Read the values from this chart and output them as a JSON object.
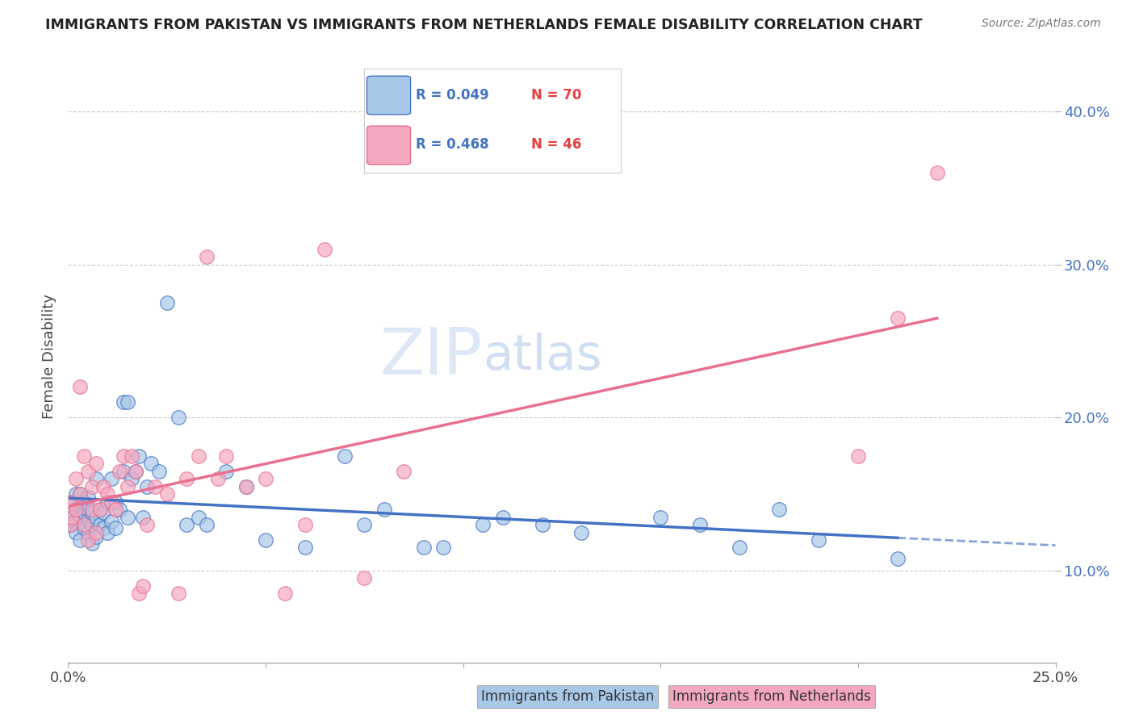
{
  "title": "IMMIGRANTS FROM PAKISTAN VS IMMIGRANTS FROM NETHERLANDS FEMALE DISABILITY CORRELATION CHART",
  "source": "Source: ZipAtlas.com",
  "ylabel": "Female Disability",
  "y_ticks": [
    0.1,
    0.2,
    0.3,
    0.4
  ],
  "y_tick_labels": [
    "10.0%",
    "20.0%",
    "30.0%",
    "40.0%"
  ],
  "x_lim": [
    0.0,
    0.25
  ],
  "y_lim": [
    0.04,
    0.44
  ],
  "pakistan_color": "#a8c8e8",
  "netherlands_color": "#f4a8c0",
  "pakistan_R": 0.049,
  "pakistan_N": 70,
  "netherlands_R": 0.468,
  "netherlands_N": 46,
  "legend_R_color": "#4472c4",
  "legend_N_color": "#e84040",
  "pakistan_line_color": "#4472c4",
  "netherlands_line_color": "#e87090",
  "background_color": "#ffffff",
  "grid_color": "#cccccc",
  "pakistan_scatter_x": [
    0.0005,
    0.001,
    0.001,
    0.0015,
    0.002,
    0.002,
    0.002,
    0.003,
    0.003,
    0.003,
    0.003,
    0.004,
    0.004,
    0.004,
    0.005,
    0.005,
    0.005,
    0.005,
    0.006,
    0.006,
    0.006,
    0.007,
    0.007,
    0.007,
    0.008,
    0.008,
    0.009,
    0.009,
    0.01,
    0.01,
    0.011,
    0.011,
    0.012,
    0.012,
    0.013,
    0.014,
    0.014,
    0.015,
    0.015,
    0.016,
    0.017,
    0.018,
    0.019,
    0.02,
    0.021,
    0.023,
    0.025,
    0.028,
    0.03,
    0.033,
    0.035,
    0.04,
    0.045,
    0.05,
    0.06,
    0.07,
    0.075,
    0.08,
    0.09,
    0.095,
    0.105,
    0.11,
    0.12,
    0.13,
    0.15,
    0.16,
    0.17,
    0.18,
    0.19,
    0.21
  ],
  "pakistan_scatter_y": [
    0.13,
    0.135,
    0.145,
    0.132,
    0.125,
    0.14,
    0.15,
    0.12,
    0.135,
    0.142,
    0.15,
    0.128,
    0.138,
    0.145,
    0.125,
    0.133,
    0.14,
    0.148,
    0.118,
    0.13,
    0.138,
    0.122,
    0.135,
    0.16,
    0.13,
    0.14,
    0.128,
    0.138,
    0.125,
    0.145,
    0.132,
    0.16,
    0.128,
    0.145,
    0.14,
    0.165,
    0.21,
    0.135,
    0.21,
    0.16,
    0.165,
    0.175,
    0.135,
    0.155,
    0.17,
    0.165,
    0.275,
    0.2,
    0.13,
    0.135,
    0.13,
    0.165,
    0.155,
    0.12,
    0.115,
    0.175,
    0.13,
    0.14,
    0.115,
    0.115,
    0.13,
    0.135,
    0.13,
    0.125,
    0.135,
    0.13,
    0.115,
    0.14,
    0.12,
    0.108
  ],
  "netherlands_scatter_x": [
    0.0005,
    0.001,
    0.001,
    0.002,
    0.002,
    0.003,
    0.003,
    0.004,
    0.004,
    0.005,
    0.005,
    0.006,
    0.006,
    0.007,
    0.007,
    0.008,
    0.009,
    0.01,
    0.011,
    0.012,
    0.013,
    0.014,
    0.015,
    0.016,
    0.017,
    0.018,
    0.019,
    0.02,
    0.022,
    0.025,
    0.028,
    0.03,
    0.033,
    0.035,
    0.038,
    0.04,
    0.045,
    0.05,
    0.055,
    0.06,
    0.065,
    0.075,
    0.085,
    0.2,
    0.21,
    0.22
  ],
  "netherlands_scatter_y": [
    0.13,
    0.145,
    0.135,
    0.14,
    0.16,
    0.15,
    0.22,
    0.13,
    0.175,
    0.12,
    0.165,
    0.14,
    0.155,
    0.125,
    0.17,
    0.14,
    0.155,
    0.15,
    0.145,
    0.14,
    0.165,
    0.175,
    0.155,
    0.175,
    0.165,
    0.085,
    0.09,
    0.13,
    0.155,
    0.15,
    0.085,
    0.16,
    0.175,
    0.305,
    0.16,
    0.175,
    0.155,
    0.16,
    0.085,
    0.13,
    0.31,
    0.095,
    0.165,
    0.175,
    0.265,
    0.36
  ],
  "watermark_color": "#c8d8f0",
  "watermark_alpha": 0.6
}
